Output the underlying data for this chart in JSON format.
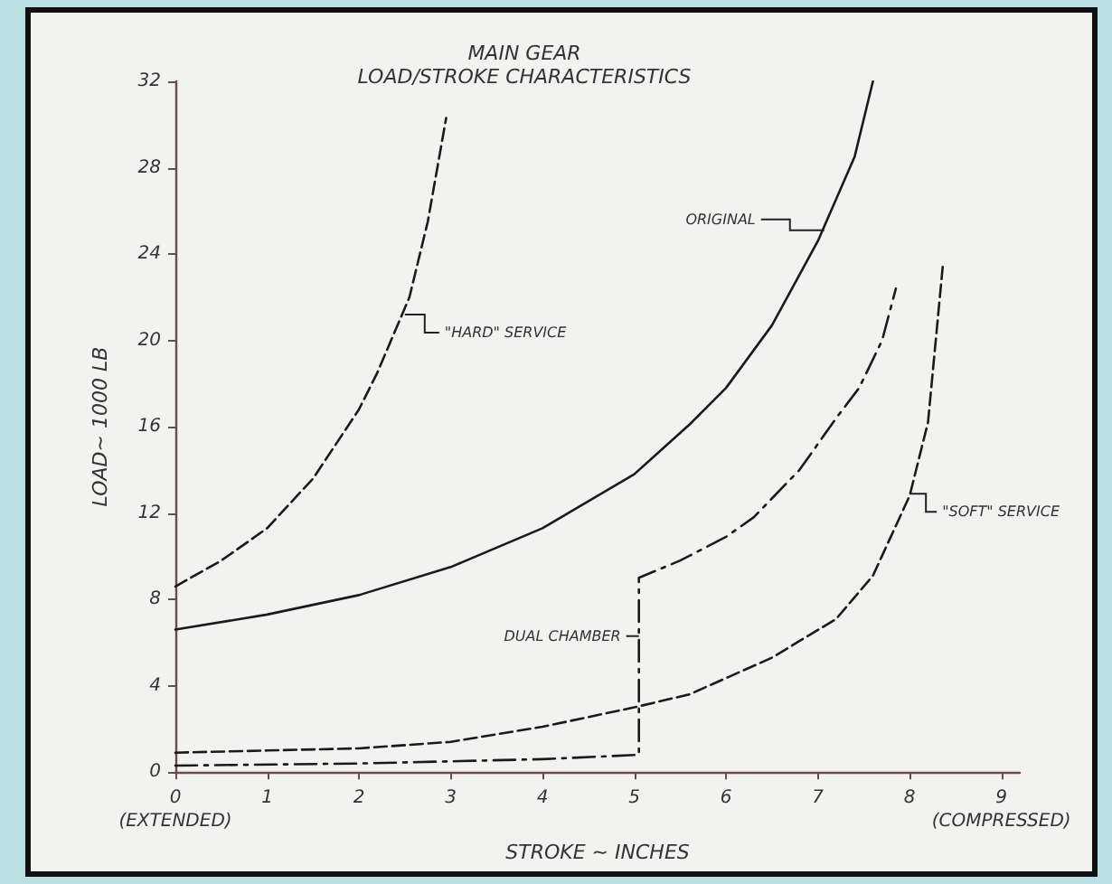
{
  "chart_data": {
    "type": "line",
    "title": "MAIN GEAR",
    "subtitle": "LOAD/STROKE CHARACTERISTICS",
    "xlabel": "STROKE ~ INCHES",
    "ylabel": "LOAD~ 1000 LB",
    "xlim": [
      0,
      9.2
    ],
    "xticks": [
      {
        "value": 0,
        "label": "0\n(EXTENDED)"
      },
      1,
      2,
      3,
      4,
      5,
      6,
      7,
      8,
      {
        "value": 9,
        "label": "9\n(COMPRESSED)"
      }
    ],
    "ylim": [
      0,
      32
    ],
    "yticks": [
      0,
      4,
      8,
      12,
      16,
      20,
      24,
      28,
      32
    ],
    "grid": false,
    "marker": "none",
    "series": [
      {
        "color": "#1a1a1a",
        "line_style": "solid",
        "x": [
          0,
          1,
          2,
          3,
          4,
          5,
          5.6,
          6,
          6.5,
          7,
          7.4,
          7.6
        ],
        "values": [
          6.6,
          7.3,
          8.2,
          9.5,
          11.3,
          13.8,
          16.1,
          17.8,
          20.7,
          24.6,
          28.5,
          32
        ]
      },
      {
        "color": "#1a1a1a",
        "line_style": "dashed",
        "x": [
          0,
          0.5,
          1,
          1.5,
          2,
          2.2,
          2.55,
          2.75,
          2.95
        ],
        "values": [
          8.6,
          9.8,
          11.3,
          13.6,
          16.8,
          18.5,
          22,
          25.5,
          30.3
        ]
      },
      {
        "color": "#1a1a1a",
        "line_style": "dashed",
        "x": [
          0,
          1,
          2,
          3,
          4,
          5,
          5.6,
          6.5,
          7.2,
          7.6,
          8,
          8.2,
          8.36
        ],
        "values": [
          0.9,
          1,
          1.1,
          1.4,
          2.1,
          3,
          3.6,
          5.3,
          7.1,
          9.1,
          12.8,
          16.2,
          23.4
        ]
      },
      {
        "color": "#1a1a1a",
        "line_style": "dashdot",
        "x": [
          0,
          2,
          4,
          5.05,
          5.05,
          5.5,
          6,
          6.3,
          6.8,
          7.2,
          7.45,
          7.7,
          7.85
        ],
        "values": [
          0.3,
          0.4,
          0.6,
          0.8,
          9,
          9.8,
          10.9,
          11.8,
          14,
          16.4,
          17.8,
          20,
          22.4
        ]
      }
    ],
    "annotations": [
      {
        "text": "ORIGINAL",
        "x": 7.07,
        "y": 25.1
      },
      {
        "text": "\"HARD\" SERVICE",
        "x": 2.5,
        "y": 21.2
      },
      {
        "text": "DUAL CHAMBER",
        "x": 5.05,
        "y": 6.3
      },
      {
        "text": "\"SOFT\" SERVICE",
        "x": 8,
        "y": 12.9
      }
    ]
  }
}
